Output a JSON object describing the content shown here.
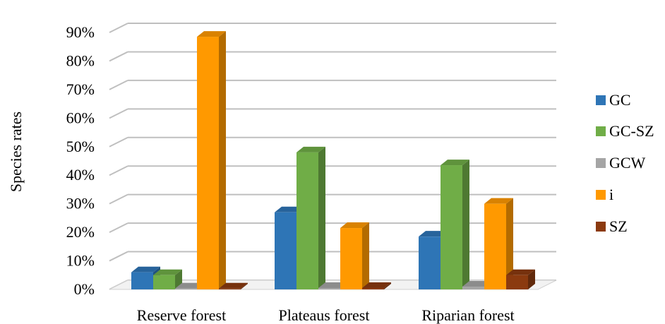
{
  "chart_data": {
    "type": "bar",
    "ylabel": "Species rates",
    "xlabel": "",
    "categories": [
      "Reserve forest",
      "Plateaus forest",
      "Riparian forest"
    ],
    "ylim": [
      0,
      90
    ],
    "yticks": [
      "0%",
      "10%",
      "20%",
      "30%",
      "40%",
      "50%",
      "60%",
      "70%",
      "80%",
      "90%"
    ],
    "grid": true,
    "legend_position": "right",
    "series": [
      {
        "name": "GC",
        "color": "#2E75B6",
        "values": [
          6,
          27,
          18.5
        ]
      },
      {
        "name": "GC-SZ",
        "color": "#70AD47",
        "values": [
          5,
          48,
          43.5
        ]
      },
      {
        "name": "GCW",
        "color": "#A5A5A5",
        "values": [
          0.3,
          0.5,
          1
        ]
      },
      {
        "name": "i",
        "color": "#FF9900",
        "values": [
          88.5,
          21.5,
          30
        ]
      },
      {
        "name": "SZ",
        "color": "#8B3A0F",
        "values": [
          0.3,
          0.5,
          5
        ]
      }
    ]
  }
}
